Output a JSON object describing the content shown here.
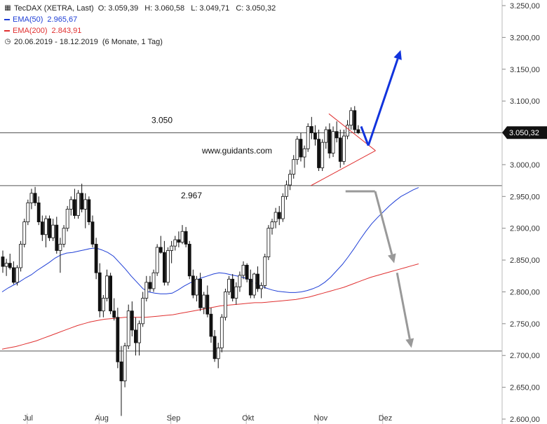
{
  "legend": {
    "title": "TecDAX (XETRA, Last)",
    "ohlc": [
      "O: 3.059,39",
      "H: 3.060,58",
      "L: 3.049,71",
      "C: 3.050,32"
    ],
    "ema50_label": "EMA(50)",
    "ema50_value": "2.965,67",
    "ema200_label": "EMA(200)",
    "ema200_value": "2.843,91",
    "range": "20.06.2019 - 18.12.2019",
    "range_detail": "(6 Monate, 1 Tag)"
  },
  "colors": {
    "ema50": "#1f3fd6",
    "ema200": "#e03030",
    "arrow_up": "#1133dd",
    "arrow_down": "#999999",
    "candle": "#111111"
  },
  "chart_data": {
    "type": "candlestick",
    "series_name": "TecDAX (XETRA, Last)",
    "y_ticks": [
      "3.250,00",
      "3.200,00",
      "3.150,00",
      "3.100,00",
      "3.050,00",
      "3.000,00",
      "2.950,00",
      "2.900,00",
      "2.850,00",
      "2.800,00",
      "2.750,00",
      "2.700,00",
      "2.650,00",
      "2.600,00"
    ],
    "ylim": [
      2600,
      3250
    ],
    "x_labels": [
      "Jul",
      "Aug",
      "Sep",
      "Okt",
      "Nov",
      "Dez"
    ],
    "last_price_label": "3.050,32",
    "last_price": 3050.32,
    "horizontal_levels": [
      {
        "value": 3050,
        "label": "3.050"
      },
      {
        "value": 2967,
        "label": "2.967"
      },
      {
        "value": 2707,
        "label": ""
      }
    ],
    "watermark": "www.guidants.com",
    "ohlc": [
      [
        2855,
        2865,
        2830,
        2840
      ],
      [
        2840,
        2852,
        2825,
        2845
      ],
      [
        2845,
        2860,
        2835,
        2838
      ],
      [
        2838,
        2848,
        2812,
        2815
      ],
      [
        2815,
        2842,
        2810,
        2838
      ],
      [
        2838,
        2880,
        2832,
        2875
      ],
      [
        2875,
        2915,
        2870,
        2910
      ],
      [
        2910,
        2945,
        2905,
        2940
      ],
      [
        2940,
        2962,
        2930,
        2955
      ],
      [
        2955,
        2965,
        2935,
        2940
      ],
      [
        2940,
        2950,
        2905,
        2910
      ],
      [
        2910,
        2920,
        2880,
        2890
      ],
      [
        2890,
        2920,
        2870,
        2915
      ],
      [
        2915,
        2920,
        2880,
        2885
      ],
      [
        2885,
        2915,
        2880,
        2905
      ],
      [
        2905,
        2918,
        2860,
        2865
      ],
      [
        2865,
        2885,
        2830,
        2875
      ],
      [
        2875,
        2905,
        2870,
        2900
      ],
      [
        2900,
        2935,
        2895,
        2930
      ],
      [
        2930,
        2950,
        2920,
        2945
      ],
      [
        2945,
        2962,
        2915,
        2920
      ],
      [
        2920,
        2960,
        2915,
        2955
      ],
      [
        2955,
        2970,
        2925,
        2930
      ],
      [
        2930,
        2955,
        2900,
        2945
      ],
      [
        2945,
        2950,
        2905,
        2910
      ],
      [
        2910,
        2920,
        2870,
        2875
      ],
      [
        2875,
        2885,
        2820,
        2830
      ],
      [
        2830,
        2845,
        2760,
        2770
      ],
      [
        2770,
        2795,
        2760,
        2790
      ],
      [
        2790,
        2835,
        2785,
        2825
      ],
      [
        2825,
        2830,
        2765,
        2770
      ],
      [
        2770,
        2790,
        2755,
        2760
      ],
      [
        2760,
        2775,
        2680,
        2690
      ],
      [
        2690,
        2715,
        2605,
        2660
      ],
      [
        2660,
        2720,
        2650,
        2715
      ],
      [
        2715,
        2780,
        2710,
        2770
      ],
      [
        2770,
        2785,
        2730,
        2740
      ],
      [
        2740,
        2760,
        2700,
        2720
      ],
      [
        2720,
        2755,
        2700,
        2750
      ],
      [
        2750,
        2800,
        2745,
        2790
      ],
      [
        2790,
        2825,
        2785,
        2815
      ],
      [
        2815,
        2825,
        2800,
        2805
      ],
      [
        2805,
        2835,
        2800,
        2830
      ],
      [
        2830,
        2875,
        2825,
        2870
      ],
      [
        2870,
        2888,
        2860,
        2862
      ],
      [
        2862,
        2880,
        2810,
        2815
      ],
      [
        2815,
        2870,
        2810,
        2865
      ],
      [
        2865,
        2880,
        2845,
        2872
      ],
      [
        2872,
        2888,
        2865,
        2882
      ],
      [
        2882,
        2895,
        2870,
        2878
      ],
      [
        2878,
        2905,
        2875,
        2895
      ],
      [
        2895,
        2902,
        2870,
        2875
      ],
      [
        2875,
        2880,
        2820,
        2825
      ],
      [
        2825,
        2835,
        2790,
        2795
      ],
      [
        2795,
        2825,
        2785,
        2820
      ],
      [
        2820,
        2830,
        2770,
        2775
      ],
      [
        2775,
        2800,
        2765,
        2795
      ],
      [
        2795,
        2810,
        2760,
        2765
      ],
      [
        2765,
        2775,
        2720,
        2730
      ],
      [
        2730,
        2740,
        2690,
        2695
      ],
      [
        2695,
        2720,
        2680,
        2712
      ],
      [
        2712,
        2765,
        2705,
        2760
      ],
      [
        2760,
        2805,
        2755,
        2800
      ],
      [
        2800,
        2825,
        2795,
        2820
      ],
      [
        2820,
        2828,
        2785,
        2790
      ],
      [
        2790,
        2815,
        2780,
        2808
      ],
      [
        2808,
        2832,
        2800,
        2826
      ],
      [
        2826,
        2848,
        2820,
        2842
      ],
      [
        2842,
        2845,
        2815,
        2820
      ],
      [
        2820,
        2835,
        2790,
        2795
      ],
      [
        2795,
        2830,
        2790,
        2828
      ],
      [
        2828,
        2840,
        2800,
        2805
      ],
      [
        2805,
        2815,
        2790,
        2810
      ],
      [
        2810,
        2860,
        2805,
        2855
      ],
      [
        2855,
        2905,
        2850,
        2900
      ],
      [
        2900,
        2915,
        2890,
        2910
      ],
      [
        2910,
        2932,
        2900,
        2925
      ],
      [
        2925,
        2935,
        2905,
        2915
      ],
      [
        2915,
        2955,
        2910,
        2950
      ],
      [
        2950,
        2975,
        2945,
        2968
      ],
      [
        2968,
        2992,
        2960,
        2985
      ],
      [
        2985,
        3015,
        2978,
        3008
      ],
      [
        3008,
        3045,
        3000,
        3040
      ],
      [
        3040,
        3050,
        3005,
        3012
      ],
      [
        3012,
        3030,
        2995,
        3025
      ],
      [
        3025,
        3065,
        3020,
        3060
      ],
      [
        3060,
        3075,
        3040,
        3050
      ],
      [
        3050,
        3062,
        3030,
        3040
      ],
      [
        3040,
        3055,
        2990,
        2995
      ],
      [
        2995,
        3040,
        2990,
        3035
      ],
      [
        3035,
        3060,
        3025,
        3055
      ],
      [
        3055,
        3065,
        3010,
        3018
      ],
      [
        3018,
        3060,
        3012,
        3052
      ],
      [
        3052,
        3068,
        3035,
        3042
      ],
      [
        3042,
        3055,
        2995,
        3005
      ],
      [
        3005,
        3055,
        3000,
        3045
      ],
      [
        3045,
        3070,
        3040,
        3062
      ],
      [
        3062,
        3090,
        3055,
        3085
      ],
      [
        3085,
        3092,
        3050,
        3055
      ],
      [
        3055,
        3062,
        3048,
        3050
      ]
    ],
    "ema50": [
      2800,
      2806,
      2811,
      2816,
      2822,
      2827,
      2834,
      2840,
      2846,
      2853,
      2858,
      2861,
      2862,
      2864,
      2866,
      2868,
      2869,
      2866,
      2862,
      2856,
      2846,
      2836,
      2825,
      2815,
      2805,
      2800,
      2798,
      2797,
      2797,
      2798,
      2803,
      2809,
      2814,
      2818,
      2822,
      2825,
      2828,
      2830,
      2829,
      2827,
      2825,
      2823,
      2820,
      2815,
      2810,
      2806,
      2803,
      2801,
      2800,
      2799,
      2799,
      2800,
      2802,
      2805,
      2809,
      2815,
      2823,
      2833,
      2843,
      2855,
      2868,
      2882,
      2895,
      2907,
      2917,
      2926,
      2935,
      2943,
      2950,
      2955,
      2960,
      2964
    ],
    "ema200": [
      2710,
      2712,
      2714,
      2717,
      2720,
      2723,
      2727,
      2731,
      2735,
      2739,
      2743,
      2747,
      2750,
      2753,
      2755,
      2757,
      2758,
      2759,
      2760,
      2760,
      2760,
      2760,
      2761,
      2762,
      2763,
      2764,
      2766,
      2768,
      2770,
      2772,
      2774,
      2776,
      2778,
      2779,
      2780,
      2781,
      2782,
      2783,
      2783,
      2784,
      2785,
      2786,
      2787,
      2788,
      2790,
      2792,
      2795,
      2798,
      2801,
      2804,
      2807,
      2811,
      2815,
      2819,
      2823,
      2826,
      2829,
      2832,
      2835,
      2838,
      2841,
      2844
    ],
    "arrows": [
      {
        "direction": "up",
        "from_index": 102,
        "from_value": 3030,
        "to_index": 111,
        "to_value": 3180
      },
      {
        "direction": "down",
        "from_index": 98,
        "from_value": 2958,
        "to_index": 109,
        "to_value": 2845
      },
      {
        "direction": "down",
        "from_index": 110,
        "from_value": 2830,
        "to_index": 114,
        "to_value": 2712
      }
    ],
    "triangle": {
      "upper_from": [
        91,
        3080
      ],
      "lower_from": [
        86,
        2967
      ],
      "apex": [
        104,
        3022
      ]
    }
  }
}
